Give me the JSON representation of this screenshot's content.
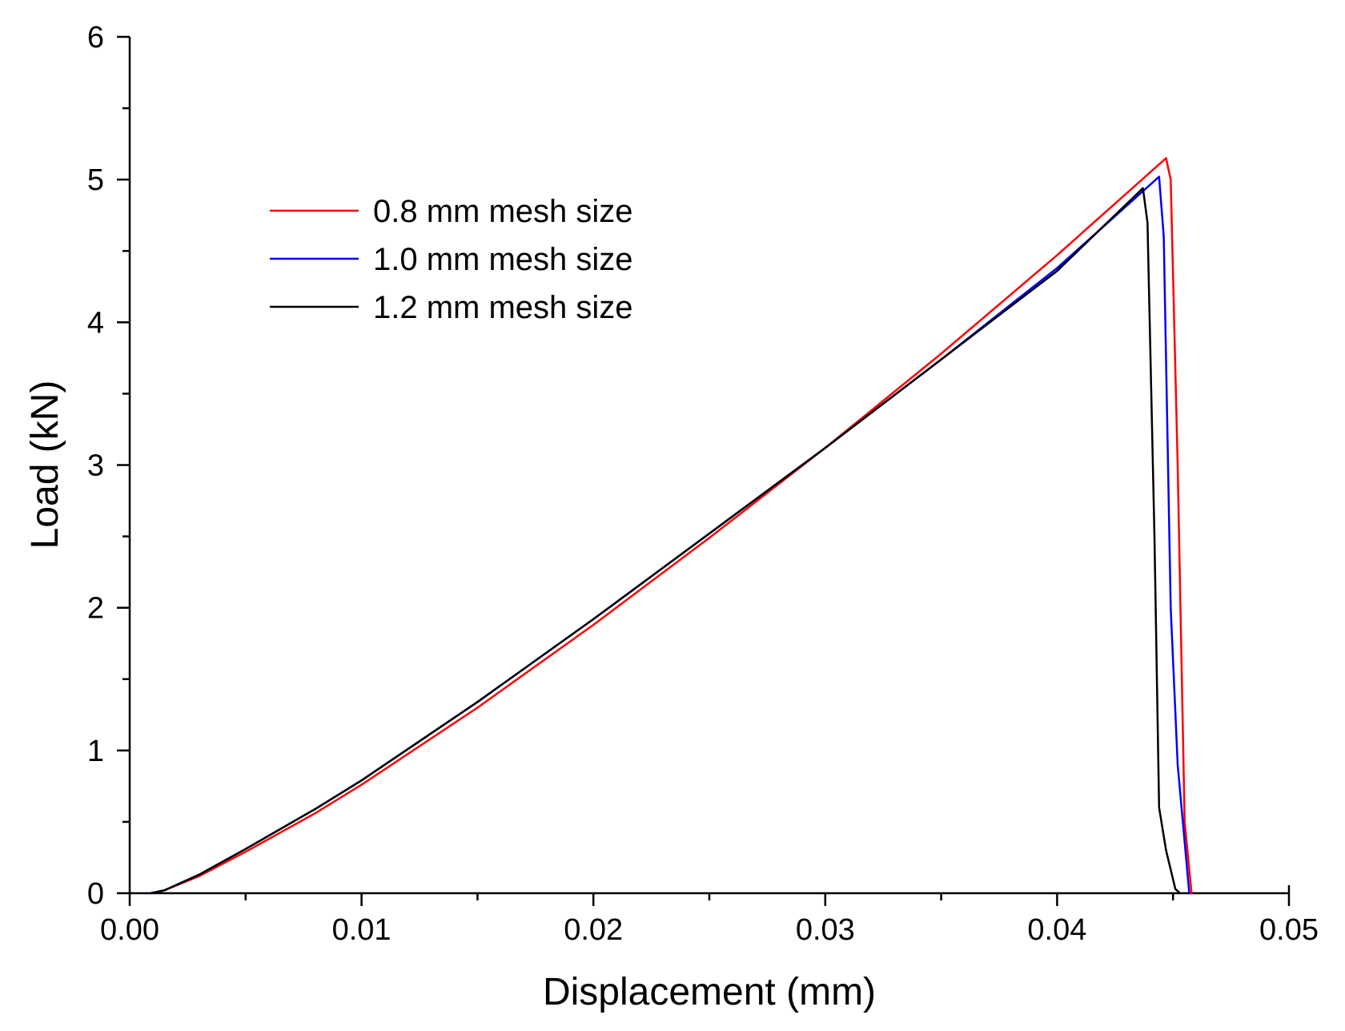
{
  "chart_data": {
    "type": "line",
    "title": "",
    "xlabel": "Displacement (mm)",
    "ylabel": "Load (kN)",
    "xlim": [
      0.0,
      0.05
    ],
    "ylim": [
      0,
      6
    ],
    "xticks": [
      "0.00",
      "0.01",
      "0.02",
      "0.03",
      "0.04",
      "0.05"
    ],
    "yticks": [
      "0",
      "1",
      "2",
      "3",
      "4",
      "5",
      "6"
    ],
    "grid": false,
    "legend_position": "top-left",
    "series": [
      {
        "name": "0.8 mm mesh size",
        "color": "#ff0000",
        "x": [
          0.0009,
          0.0015,
          0.003,
          0.005,
          0.008,
          0.01,
          0.015,
          0.02,
          0.025,
          0.03,
          0.035,
          0.04,
          0.0447,
          0.0449,
          0.0452,
          0.0455,
          0.0458
        ],
        "y": [
          0.0,
          0.02,
          0.12,
          0.29,
          0.56,
          0.76,
          1.3,
          1.88,
          2.49,
          3.12,
          3.78,
          4.47,
          5.15,
          5.0,
          3.0,
          0.5,
          0.0
        ]
      },
      {
        "name": "1.0 mm mesh size",
        "color": "#0000ff",
        "x": [
          0.0009,
          0.0015,
          0.003,
          0.005,
          0.008,
          0.01,
          0.015,
          0.02,
          0.025,
          0.03,
          0.035,
          0.04,
          0.0444,
          0.0446,
          0.0449,
          0.0452,
          0.0457
        ],
        "y": [
          0.0,
          0.02,
          0.13,
          0.31,
          0.59,
          0.79,
          1.34,
          1.92,
          2.52,
          3.12,
          3.74,
          4.38,
          5.02,
          4.6,
          2.0,
          0.9,
          0.0
        ]
      },
      {
        "name": "1.2 mm mesh size",
        "color": "#000000",
        "x": [
          0.0009,
          0.0015,
          0.003,
          0.005,
          0.008,
          0.01,
          0.015,
          0.02,
          0.025,
          0.03,
          0.035,
          0.04,
          0.0437,
          0.0439,
          0.0442,
          0.0444,
          0.0447,
          0.0451,
          0.0453
        ],
        "y": [
          0.0,
          0.02,
          0.13,
          0.31,
          0.59,
          0.79,
          1.34,
          1.92,
          2.52,
          3.12,
          3.74,
          4.36,
          4.94,
          4.7,
          2.5,
          0.6,
          0.3,
          0.03,
          0.0
        ]
      }
    ]
  }
}
